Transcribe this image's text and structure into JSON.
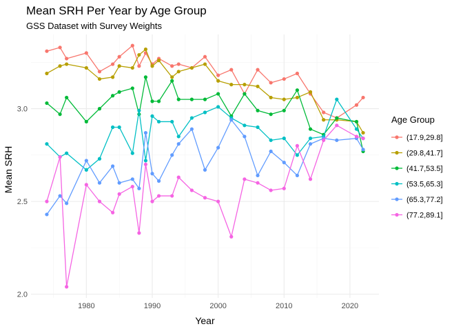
{
  "chart_data": {
    "type": "line",
    "title": "Mean SRH Per Year by Age Group",
    "subtitle": "GSS Dataset with Survey Weights",
    "xlabel": "Year",
    "ylabel": "Mean SRH",
    "xlim": [
      1971.6,
      2024.4
    ],
    "ylim": [
      1.98,
      3.4
    ],
    "x_ticks": [
      1980,
      1990,
      2000,
      2010,
      2020
    ],
    "y_ticks": [
      2.0,
      2.5,
      3.0
    ],
    "y_tick_labels": [
      "2.0",
      "2.5",
      "3.0"
    ],
    "grid": true,
    "legend_position": "right",
    "legend_title": "Age Group",
    "x": [
      1974,
      1976,
      1977,
      1980,
      1982,
      1984,
      1985,
      1987,
      1988,
      1989,
      1990,
      1991,
      1993,
      1994,
      1996,
      1998,
      2000,
      2002,
      2004,
      2006,
      2008,
      2010,
      2012,
      2014,
      2016,
      2018,
      2021,
      2022
    ],
    "series": [
      {
        "name": "(17.9,29.8]",
        "color": "#F8766D",
        "values": [
          3.31,
          3.33,
          3.27,
          3.3,
          3.2,
          3.24,
          3.28,
          3.34,
          3.23,
          3.3,
          3.24,
          3.27,
          3.23,
          3.24,
          3.22,
          3.28,
          3.18,
          3.21,
          3.08,
          3.21,
          3.14,
          3.16,
          3.19,
          3.08,
          2.98,
          2.95,
          3.02,
          3.06
        ]
      },
      {
        "name": "(29.8,41.7]",
        "color": "#B79F00",
        "values": [
          3.19,
          3.23,
          3.24,
          3.22,
          3.16,
          3.17,
          3.23,
          3.22,
          3.29,
          3.32,
          3.23,
          3.26,
          3.17,
          3.2,
          3.22,
          3.24,
          3.15,
          3.13,
          3.13,
          3.12,
          3.06,
          3.05,
          3.06,
          3.09,
          2.94,
          2.94,
          2.93,
          2.87
        ]
      },
      {
        "name": "(41.7,53.5]",
        "color": "#00BA38",
        "values": [
          3.03,
          2.97,
          3.06,
          2.93,
          3.0,
          3.07,
          3.09,
          3.11,
          2.97,
          3.17,
          3.04,
          3.04,
          3.15,
          3.05,
          3.05,
          3.05,
          3.08,
          2.96,
          3.08,
          2.99,
          2.97,
          2.99,
          3.1,
          2.89,
          2.86,
          2.95,
          2.93,
          2.77
        ]
      },
      {
        "name": "(53.5,65.3]",
        "color": "#00BFC4",
        "values": [
          2.81,
          2.74,
          2.76,
          2.67,
          2.73,
          2.9,
          2.9,
          2.76,
          2.99,
          2.72,
          2.96,
          2.93,
          2.93,
          2.85,
          2.95,
          2.98,
          3.01,
          2.95,
          2.91,
          2.9,
          2.83,
          2.84,
          2.75,
          2.84,
          2.85,
          3.05,
          2.89,
          2.84
        ]
      },
      {
        "name": "(65.3,77.2]",
        "color": "#619CFF",
        "values": [
          2.43,
          2.53,
          2.49,
          2.72,
          2.6,
          2.69,
          2.6,
          2.62,
          2.57,
          2.87,
          2.65,
          2.61,
          2.75,
          2.81,
          2.89,
          2.67,
          2.79,
          2.94,
          2.85,
          2.64,
          2.77,
          2.71,
          2.64,
          2.81,
          2.84,
          2.83,
          2.84,
          2.78
        ]
      },
      {
        "name": "(77.2,89.1]",
        "color": "#F564E3",
        "values": [
          2.5,
          2.74,
          2.04,
          2.59,
          2.5,
          2.44,
          2.54,
          2.58,
          2.33,
          2.7,
          2.5,
          2.53,
          2.53,
          2.63,
          2.56,
          2.52,
          2.5,
          2.31,
          2.62,
          2.6,
          2.56,
          2.57,
          2.8,
          2.62,
          2.83,
          2.91,
          2.85,
          2.84
        ]
      }
    ]
  }
}
